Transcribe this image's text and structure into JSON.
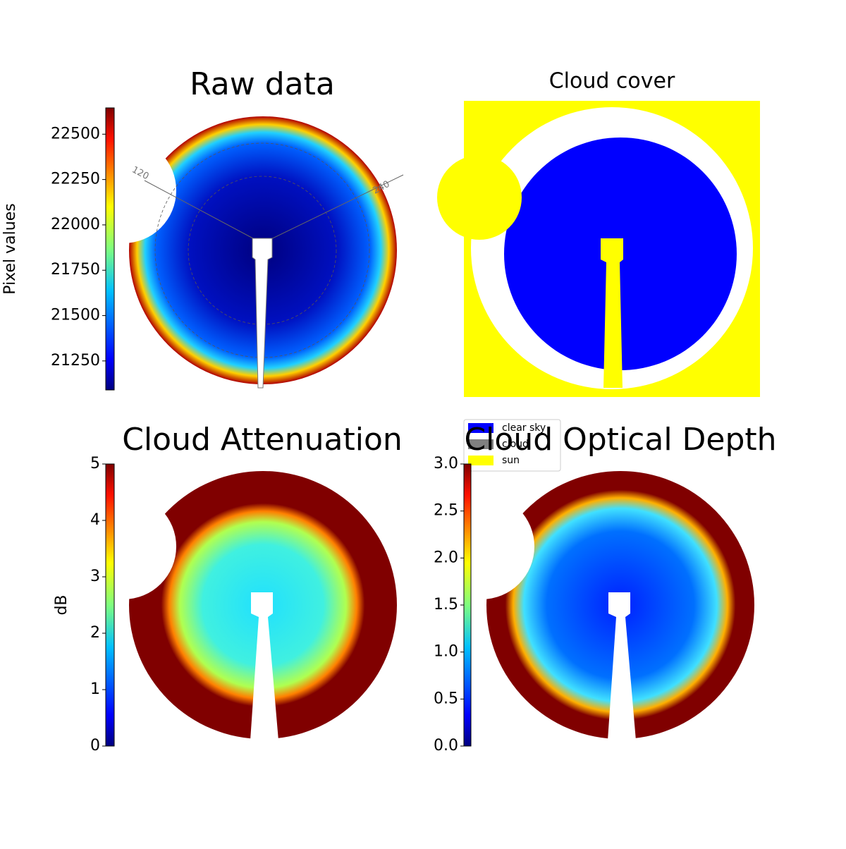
{
  "chart_data": [
    {
      "type": "image",
      "title": "Raw data",
      "colormap": "jet",
      "colorbar_label": "Pixel values",
      "clim": [
        21090,
        22645
      ],
      "cticks": [
        21250,
        21500,
        21750,
        22000,
        22250,
        22500
      ],
      "annotations": [
        "120",
        "240"
      ]
    },
    {
      "type": "image",
      "title": "Cloud cover",
      "series": [
        {
          "name": "clear sky",
          "color": "#0000ff"
        },
        {
          "name": "cloud",
          "color": "#808080"
        },
        {
          "name": "sun",
          "color": "#ffff00"
        }
      ],
      "legend": "lower left"
    },
    {
      "type": "image",
      "title": "Cloud Attenuation",
      "colormap": "jet",
      "colorbar_label": "dB",
      "clim": [
        0,
        5
      ],
      "cticks": [
        0,
        1,
        2,
        3,
        4,
        5
      ]
    },
    {
      "type": "image",
      "title": "Cloud Optical Depth",
      "colormap": "jet",
      "clim": [
        0,
        3
      ],
      "cticks": [
        {
          "value": 0,
          "label": "0.0"
        },
        0.5,
        {
          "value": 1,
          "label": "1.0"
        },
        1.5,
        {
          "value": 2,
          "label": "2.0"
        },
        2.5,
        {
          "value": 3,
          "label": "3.0"
        }
      ]
    }
  ]
}
